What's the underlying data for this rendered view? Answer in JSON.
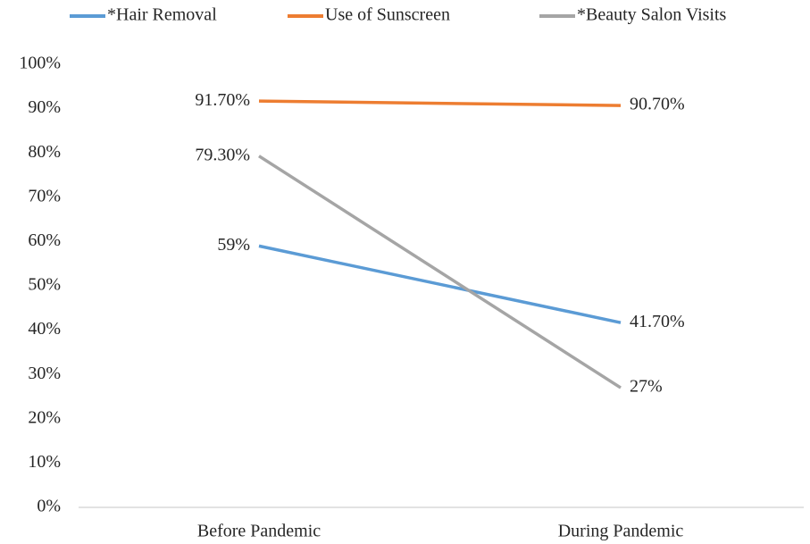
{
  "chart_data": {
    "type": "line",
    "categories": [
      "Before Pandemic",
      "During Pandemic"
    ],
    "series": [
      {
        "name": "*Hair Removal",
        "color": "#5b9bd5",
        "values": [
          59,
          41.7
        ],
        "value_labels": [
          "59%",
          "41.70%"
        ]
      },
      {
        "name": "Use of Sunscreen",
        "color": "#ed7d31",
        "values": [
          91.7,
          90.7
        ],
        "value_labels": [
          "91.70%",
          "90.70%"
        ]
      },
      {
        "name": "*Beauty Salon Visits",
        "color": "#a5a5a5",
        "values": [
          79.3,
          27
        ],
        "value_labels": [
          "79.30%",
          "27%"
        ]
      }
    ],
    "ylim": [
      0,
      100
    ],
    "yticks": [
      {
        "value": 0,
        "label": "0%"
      },
      {
        "value": 10,
        "label": "10%"
      },
      {
        "value": 20,
        "label": "20%"
      },
      {
        "value": 30,
        "label": "30%"
      },
      {
        "value": 40,
        "label": "40%"
      },
      {
        "value": 50,
        "label": "50%"
      },
      {
        "value": 60,
        "label": "60%"
      },
      {
        "value": 70,
        "label": "70%"
      },
      {
        "value": 80,
        "label": "80%"
      },
      {
        "value": 90,
        "label": "90%"
      },
      {
        "value": 100,
        "label": "100%"
      }
    ],
    "grid": false,
    "legend": "top"
  }
}
